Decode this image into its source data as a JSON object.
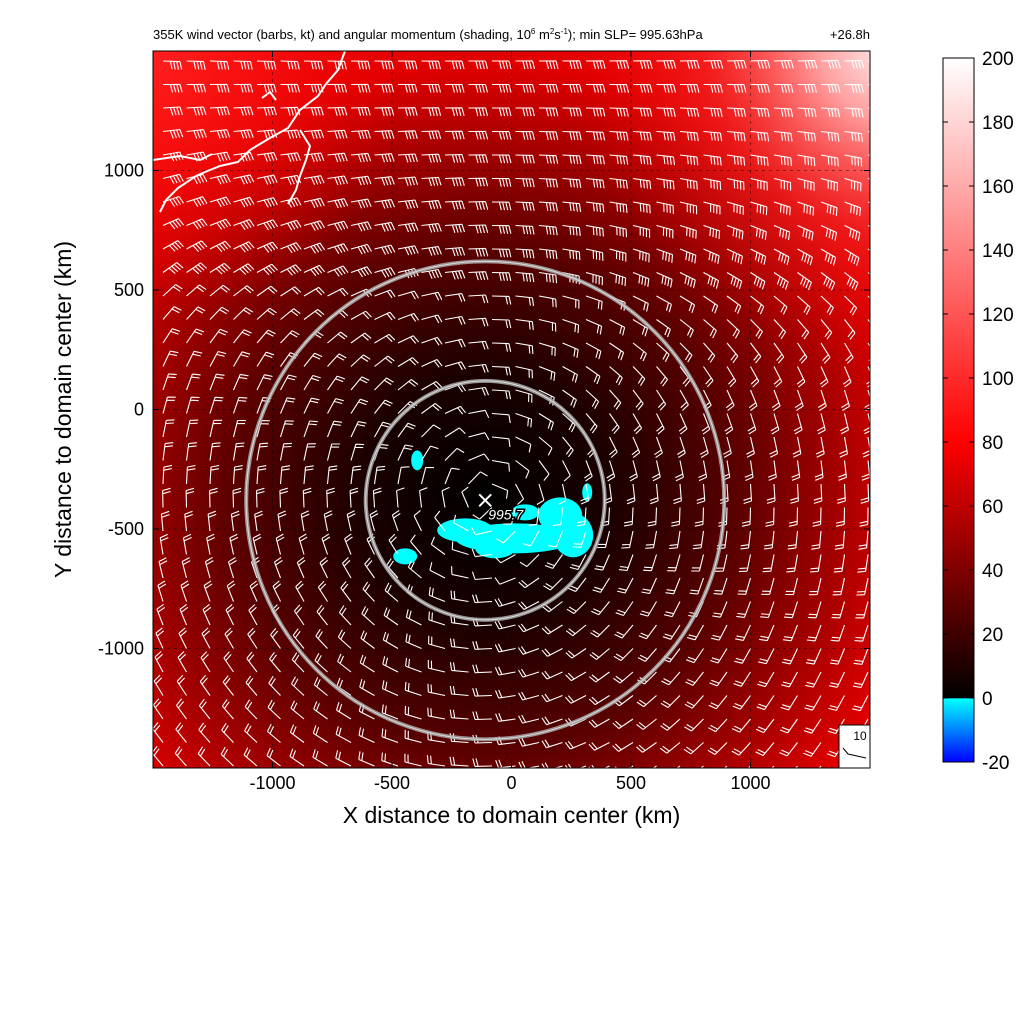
{
  "chart_data": {
    "type": "heatmap",
    "title": "355K wind vector (barbs, kt) and angular momentum (shading, 10",
    "title_exp1": "6",
    "title_unit1": " m",
    "title_exp2": "2",
    "title_unit2": "s",
    "title_exp3": "-1",
    "title_tail": "); min SLP= 995.63hPa",
    "forecast_time": "+26.8h",
    "xlabel": "X distance to domain center (km)",
    "ylabel": "Y distance to domain center (km)",
    "xlim": [
      -1500,
      1500
    ],
    "ylim": [
      -1500,
      1500
    ],
    "x_ticks": [
      -1000,
      -500,
      0,
      500,
      1000
    ],
    "y_ticks": [
      1000,
      500,
      0,
      -500,
      -1000
    ],
    "grid": "dashed",
    "storm_center": {
      "x": -110,
      "y": -380,
      "label": "995.7",
      "marker": "x"
    },
    "range_rings_km": [
      500,
      1000
    ],
    "barb_reference": {
      "label": "10",
      "value_kt": 10
    },
    "colorbar": {
      "min": -20,
      "max": 200,
      "ticks": [
        "200",
        "180",
        "160",
        "140",
        "120",
        "100",
        "80",
        "60",
        "40",
        "20",
        "0",
        "-20"
      ],
      "colors": {
        "negative_low": "#0000ff",
        "negative_high": "#00ffff",
        "zero": "#000000",
        "mid": "#ff0000",
        "high": "#ffffff"
      }
    },
    "overlay": {
      "coastline_color": "#ffffff",
      "barb_color": "#ffffff",
      "ring_color": "#aaaaaa",
      "negative_region_color": "#00ffff"
    }
  }
}
